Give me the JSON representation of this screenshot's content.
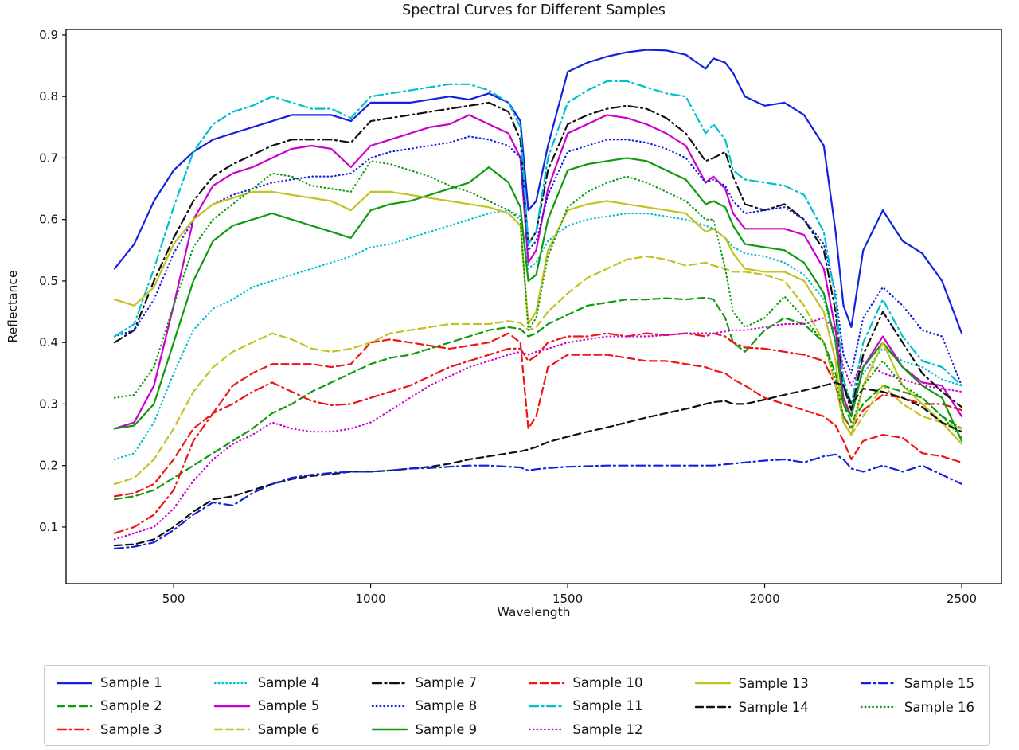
{
  "figure": {
    "title": "Spectral Curves for Different Samples",
    "xlabel": "Wavelength",
    "ylabel": "Reflectance"
  },
  "chart_data": {
    "type": "line",
    "title": "Spectral Curves for Different Samples",
    "xlabel": "Wavelength",
    "ylabel": "Reflectance",
    "grid": false,
    "legend_position": "bottom",
    "xlim": [
      227,
      2601
    ],
    "ylim": [
      0.008,
      0.909
    ],
    "xticks": [
      500,
      1000,
      1500,
      2000,
      2500
    ],
    "yticks": [
      0.1,
      0.2,
      0.3,
      0.4,
      0.5,
      0.6,
      0.7,
      0.8,
      0.9
    ],
    "legend_columns": [
      [
        0,
        1,
        2
      ],
      [
        3,
        4,
        5
      ],
      [
        6,
        7,
        8
      ],
      [
        9,
        10,
        11
      ],
      [
        12,
        13
      ],
      [
        14,
        15
      ]
    ],
    "x": [
      350,
      400,
      450,
      500,
      550,
      600,
      650,
      700,
      750,
      800,
      850,
      900,
      950,
      1000,
      1050,
      1100,
      1150,
      1200,
      1250,
      1300,
      1350,
      1380,
      1400,
      1420,
      1450,
      1500,
      1550,
      1600,
      1650,
      1700,
      1750,
      1800,
      1850,
      1870,
      1900,
      1920,
      1950,
      2000,
      2050,
      2100,
      2150,
      2180,
      2200,
      2220,
      2250,
      2300,
      2350,
      2400,
      2450,
      2500
    ],
    "series": [
      {
        "name": "Sample 1",
        "color": "#1222e0",
        "style": "solid",
        "values": [
          0.52,
          0.56,
          0.63,
          0.68,
          0.71,
          0.73,
          0.74,
          0.75,
          0.76,
          0.77,
          0.77,
          0.77,
          0.76,
          0.79,
          0.79,
          0.79,
          0.795,
          0.8,
          0.795,
          0.805,
          0.79,
          0.76,
          0.615,
          0.63,
          0.72,
          0.84,
          0.855,
          0.865,
          0.872,
          0.876,
          0.875,
          0.868,
          0.845,
          0.862,
          0.855,
          0.838,
          0.8,
          0.785,
          0.79,
          0.77,
          0.72,
          0.58,
          0.46,
          0.425,
          0.55,
          0.615,
          0.565,
          0.545,
          0.5,
          0.415
        ]
      },
      {
        "name": "Sample 2",
        "color": "#0f9b0f",
        "style": "dashed",
        "values": [
          0.145,
          0.15,
          0.16,
          0.18,
          0.2,
          0.22,
          0.24,
          0.26,
          0.285,
          0.3,
          0.32,
          0.335,
          0.35,
          0.365,
          0.375,
          0.38,
          0.39,
          0.4,
          0.41,
          0.42,
          0.425,
          0.422,
          0.41,
          0.415,
          0.43,
          0.445,
          0.46,
          0.465,
          0.47,
          0.47,
          0.472,
          0.47,
          0.473,
          0.47,
          0.44,
          0.4,
          0.385,
          0.42,
          0.44,
          0.43,
          0.4,
          0.35,
          0.3,
          0.27,
          0.3,
          0.33,
          0.32,
          0.31,
          0.28,
          0.26
        ]
      },
      {
        "name": "Sample 3",
        "color": "#f01414",
        "style": "dashdot",
        "values": [
          0.09,
          0.1,
          0.12,
          0.16,
          0.24,
          0.285,
          0.3,
          0.32,
          0.335,
          0.32,
          0.305,
          0.298,
          0.3,
          0.31,
          0.32,
          0.33,
          0.345,
          0.36,
          0.37,
          0.38,
          0.39,
          0.39,
          0.37,
          0.378,
          0.4,
          0.41,
          0.41,
          0.415,
          0.41,
          0.415,
          0.412,
          0.415,
          0.41,
          0.415,
          0.41,
          0.4,
          0.392,
          0.39,
          0.385,
          0.38,
          0.37,
          0.33,
          0.28,
          0.26,
          0.29,
          0.315,
          0.31,
          0.3,
          0.3,
          0.29
        ]
      },
      {
        "name": "Sample 4",
        "color": "#00c0cc",
        "style": "dotted",
        "values": [
          0.21,
          0.22,
          0.27,
          0.35,
          0.42,
          0.455,
          0.47,
          0.49,
          0.5,
          0.51,
          0.52,
          0.53,
          0.54,
          0.555,
          0.56,
          0.57,
          0.58,
          0.59,
          0.6,
          0.61,
          0.615,
          0.605,
          0.52,
          0.53,
          0.565,
          0.59,
          0.6,
          0.605,
          0.61,
          0.61,
          0.605,
          0.6,
          0.59,
          0.585,
          0.57,
          0.555,
          0.545,
          0.54,
          0.53,
          0.51,
          0.47,
          0.4,
          0.33,
          0.3,
          0.35,
          0.39,
          0.37,
          0.36,
          0.34,
          0.33
        ]
      },
      {
        "name": "Sample 5",
        "color": "#cc00cc",
        "style": "solid",
        "values": [
          0.26,
          0.27,
          0.33,
          0.46,
          0.6,
          0.655,
          0.675,
          0.685,
          0.7,
          0.715,
          0.72,
          0.715,
          0.685,
          0.72,
          0.73,
          0.74,
          0.75,
          0.755,
          0.77,
          0.755,
          0.74,
          0.7,
          0.53,
          0.55,
          0.65,
          0.74,
          0.755,
          0.77,
          0.765,
          0.755,
          0.74,
          0.72,
          0.66,
          0.67,
          0.65,
          0.61,
          0.585,
          0.585,
          0.585,
          0.575,
          0.52,
          0.42,
          0.31,
          0.28,
          0.36,
          0.41,
          0.36,
          0.335,
          0.33,
          0.28
        ]
      },
      {
        "name": "Sample 6",
        "color": "#c2c220",
        "style": "dashed",
        "values": [
          0.17,
          0.18,
          0.21,
          0.26,
          0.32,
          0.36,
          0.385,
          0.4,
          0.415,
          0.405,
          0.39,
          0.385,
          0.39,
          0.4,
          0.415,
          0.42,
          0.425,
          0.43,
          0.43,
          0.43,
          0.435,
          0.432,
          0.42,
          0.425,
          0.45,
          0.48,
          0.505,
          0.52,
          0.535,
          0.54,
          0.535,
          0.525,
          0.53,
          0.525,
          0.52,
          0.515,
          0.515,
          0.51,
          0.5,
          0.46,
          0.4,
          0.33,
          0.27,
          0.25,
          0.28,
          0.33,
          0.3,
          0.28,
          0.27,
          0.26
        ]
      },
      {
        "name": "Sample 7",
        "color": "#111111",
        "style": "dashdot",
        "values": [
          0.4,
          0.42,
          0.5,
          0.57,
          0.63,
          0.67,
          0.69,
          0.705,
          0.72,
          0.73,
          0.73,
          0.73,
          0.725,
          0.76,
          0.765,
          0.77,
          0.775,
          0.78,
          0.785,
          0.79,
          0.775,
          0.73,
          0.56,
          0.58,
          0.68,
          0.755,
          0.77,
          0.78,
          0.785,
          0.78,
          0.765,
          0.74,
          0.695,
          0.7,
          0.71,
          0.67,
          0.625,
          0.615,
          0.625,
          0.6,
          0.55,
          0.45,
          0.33,
          0.29,
          0.38,
          0.45,
          0.4,
          0.35,
          0.32,
          0.295
        ]
      },
      {
        "name": "Sample 8",
        "color": "#1222e0",
        "style": "dotted",
        "values": [
          0.41,
          0.42,
          0.47,
          0.545,
          0.6,
          0.625,
          0.64,
          0.65,
          0.66,
          0.665,
          0.67,
          0.67,
          0.675,
          0.7,
          0.71,
          0.715,
          0.72,
          0.725,
          0.735,
          0.73,
          0.72,
          0.7,
          0.55,
          0.565,
          0.64,
          0.71,
          0.72,
          0.73,
          0.73,
          0.725,
          0.715,
          0.7,
          0.66,
          0.665,
          0.655,
          0.63,
          0.61,
          0.615,
          0.62,
          0.6,
          0.56,
          0.48,
          0.38,
          0.35,
          0.44,
          0.49,
          0.46,
          0.42,
          0.41,
          0.33
        ]
      },
      {
        "name": "Sample 9",
        "color": "#0f9b0f",
        "style": "solid",
        "values": [
          0.26,
          0.265,
          0.3,
          0.4,
          0.5,
          0.565,
          0.59,
          0.6,
          0.61,
          0.6,
          0.59,
          0.58,
          0.57,
          0.615,
          0.625,
          0.63,
          0.64,
          0.65,
          0.66,
          0.685,
          0.66,
          0.62,
          0.5,
          0.51,
          0.6,
          0.68,
          0.69,
          0.695,
          0.7,
          0.695,
          0.68,
          0.665,
          0.625,
          0.63,
          0.62,
          0.59,
          0.56,
          0.555,
          0.55,
          0.53,
          0.48,
          0.4,
          0.3,
          0.28,
          0.36,
          0.4,
          0.36,
          0.33,
          0.31,
          0.24
        ]
      },
      {
        "name": "Sample 10",
        "color": "#f01414",
        "style": "dashed",
        "values": [
          0.15,
          0.155,
          0.17,
          0.21,
          0.26,
          0.285,
          0.33,
          0.35,
          0.365,
          0.365,
          0.365,
          0.36,
          0.365,
          0.4,
          0.405,
          0.4,
          0.395,
          0.39,
          0.395,
          0.4,
          0.415,
          0.4,
          0.26,
          0.28,
          0.36,
          0.38,
          0.38,
          0.38,
          0.375,
          0.37,
          0.37,
          0.365,
          0.36,
          0.355,
          0.35,
          0.34,
          0.33,
          0.31,
          0.3,
          0.29,
          0.28,
          0.265,
          0.24,
          0.21,
          0.24,
          0.25,
          0.245,
          0.22,
          0.215,
          0.205
        ]
      },
      {
        "name": "Sample 11",
        "color": "#00c0cc",
        "style": "dashdot",
        "values": [
          0.41,
          0.43,
          0.52,
          0.62,
          0.71,
          0.755,
          0.775,
          0.785,
          0.8,
          0.79,
          0.78,
          0.78,
          0.765,
          0.8,
          0.805,
          0.81,
          0.815,
          0.82,
          0.82,
          0.81,
          0.79,
          0.75,
          0.56,
          0.58,
          0.7,
          0.79,
          0.81,
          0.825,
          0.825,
          0.815,
          0.805,
          0.8,
          0.74,
          0.755,
          0.73,
          0.68,
          0.665,
          0.66,
          0.655,
          0.64,
          0.58,
          0.47,
          0.34,
          0.3,
          0.4,
          0.47,
          0.41,
          0.37,
          0.36,
          0.33
        ]
      },
      {
        "name": "Sample 12",
        "color": "#cc00cc",
        "style": "dotted",
        "values": [
          0.08,
          0.09,
          0.1,
          0.13,
          0.175,
          0.21,
          0.235,
          0.25,
          0.27,
          0.26,
          0.255,
          0.255,
          0.26,
          0.27,
          0.29,
          0.31,
          0.33,
          0.345,
          0.36,
          0.37,
          0.38,
          0.385,
          0.38,
          0.385,
          0.39,
          0.4,
          0.405,
          0.41,
          0.41,
          0.41,
          0.412,
          0.415,
          0.415,
          0.415,
          0.418,
          0.42,
          0.42,
          0.425,
          0.43,
          0.43,
          0.44,
          0.42,
          0.36,
          0.33,
          0.37,
          0.35,
          0.34,
          0.33,
          0.325,
          0.32
        ]
      },
      {
        "name": "Sample 13",
        "color": "#c2c220",
        "style": "solid",
        "values": [
          0.47,
          0.46,
          0.49,
          0.56,
          0.6,
          0.625,
          0.635,
          0.645,
          0.645,
          0.64,
          0.635,
          0.63,
          0.615,
          0.645,
          0.645,
          0.64,
          0.635,
          0.63,
          0.625,
          0.62,
          0.61,
          0.59,
          0.43,
          0.45,
          0.55,
          0.615,
          0.625,
          0.63,
          0.625,
          0.62,
          0.615,
          0.61,
          0.58,
          0.585,
          0.57,
          0.545,
          0.52,
          0.515,
          0.515,
          0.5,
          0.45,
          0.37,
          0.27,
          0.25,
          0.33,
          0.4,
          0.33,
          0.3,
          0.27,
          0.235
        ]
      },
      {
        "name": "Sample 14",
        "color": "#111111",
        "style": "dashed",
        "values": [
          0.07,
          0.072,
          0.08,
          0.1,
          0.125,
          0.145,
          0.15,
          0.16,
          0.17,
          0.178,
          0.183,
          0.186,
          0.19,
          0.19,
          0.192,
          0.195,
          0.198,
          0.203,
          0.21,
          0.215,
          0.22,
          0.223,
          0.226,
          0.23,
          0.238,
          0.247,
          0.255,
          0.262,
          0.27,
          0.278,
          0.285,
          0.292,
          0.3,
          0.303,
          0.305,
          0.3,
          0.3,
          0.307,
          0.315,
          0.322,
          0.33,
          0.335,
          0.33,
          0.3,
          0.325,
          0.32,
          0.31,
          0.295,
          0.27,
          0.255
        ]
      },
      {
        "name": "Sample 15",
        "color": "#1222e0",
        "style": "dashdot",
        "values": [
          0.065,
          0.068,
          0.075,
          0.095,
          0.12,
          0.14,
          0.135,
          0.155,
          0.17,
          0.18,
          0.185,
          0.188,
          0.19,
          0.19,
          0.192,
          0.195,
          0.196,
          0.198,
          0.2,
          0.2,
          0.198,
          0.197,
          0.192,
          0.194,
          0.196,
          0.198,
          0.199,
          0.2,
          0.2,
          0.2,
          0.2,
          0.2,
          0.2,
          0.2,
          0.202,
          0.203,
          0.205,
          0.208,
          0.21,
          0.205,
          0.215,
          0.218,
          0.21,
          0.195,
          0.19,
          0.2,
          0.19,
          0.2,
          0.185,
          0.17
        ]
      },
      {
        "name": "Sample 16",
        "color": "#0f9b0f",
        "style": "dotted",
        "values": [
          0.31,
          0.315,
          0.36,
          0.46,
          0.555,
          0.6,
          0.625,
          0.65,
          0.675,
          0.67,
          0.655,
          0.65,
          0.645,
          0.695,
          0.69,
          0.68,
          0.67,
          0.655,
          0.645,
          0.63,
          0.615,
          0.6,
          0.42,
          0.44,
          0.54,
          0.62,
          0.645,
          0.66,
          0.67,
          0.66,
          0.645,
          0.63,
          0.6,
          0.6,
          0.52,
          0.45,
          0.425,
          0.44,
          0.475,
          0.44,
          0.4,
          0.34,
          0.28,
          0.26,
          0.33,
          0.37,
          0.33,
          0.31,
          0.28,
          0.245
        ]
      }
    ]
  }
}
